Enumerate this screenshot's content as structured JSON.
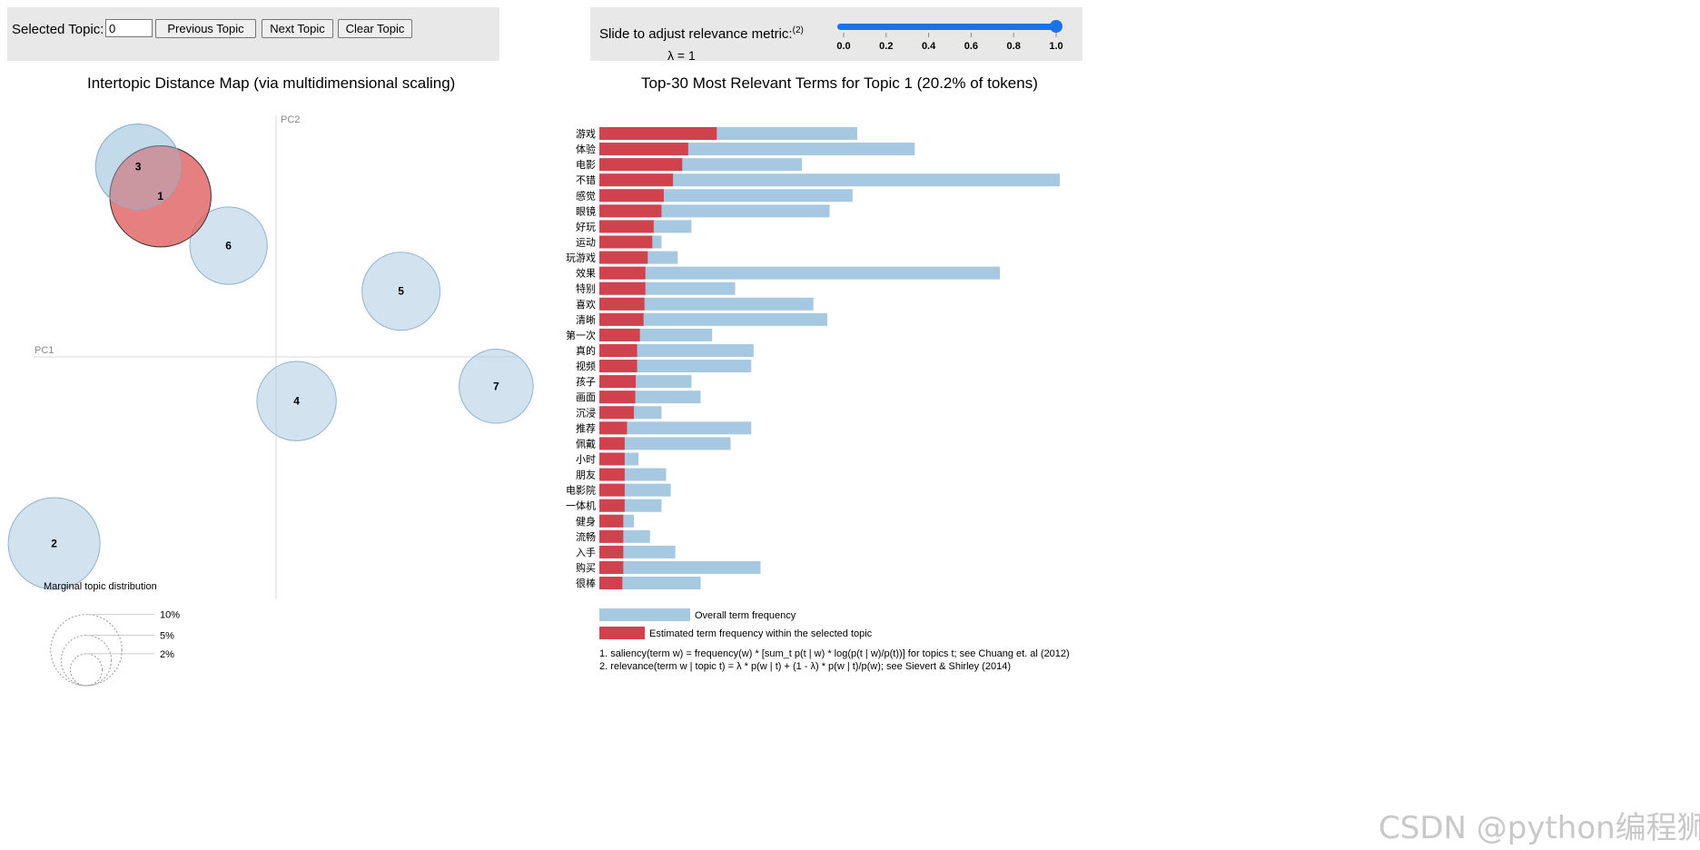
{
  "controls": {
    "selected_topic_label": "Selected Topic:",
    "selected_topic_value": "0",
    "previous_label": "Previous Topic",
    "next_label": "Next Topic",
    "clear_label": "Clear Topic",
    "slide_label": "Slide to adjust relevance metric:",
    "slide_footnote": "(2)",
    "lambda_text": "λ = 1",
    "lambda_value": 1.0,
    "slider_ticks": [
      "0.0",
      "0.2",
      "0.4",
      "0.6",
      "0.8",
      "1.0"
    ]
  },
  "map_title": "Intertopic Distance Map (via multidimensional scaling)",
  "bar_title": "Top-30 Most Relevant Terms for Topic 1 (20.2% of tokens)",
  "legend": {
    "overall": "Overall term frequency",
    "estimated": "Estimated term frequency within the selected topic"
  },
  "footnotes": [
    "1. saliency(term w) = frequency(w) * [sum_t p(t | w) * log(p(t | w)/p(t))] for topics t; see Chuang et. al (2012)",
    "2. relevance(term w | topic t) = λ * p(w | t) + (1 - λ) * p(w | t)/p(w); see Sievert & Shirley (2014)"
  ],
  "watermark": "CSDN @python编程狮",
  "colors": {
    "overall_bar": "#a6c8e0",
    "topic_bar": "#d0434e",
    "bubble": "#a6c8e0",
    "selected_bubble": "#e06060",
    "slider": "#1a73e8"
  },
  "chart_data": [
    {
      "type": "scatter",
      "title": "Intertopic Distance Map (via multidimensional scaling)",
      "xlabel": "PC1",
      "ylabel": "PC2",
      "xlim": [
        -0.26,
        0.26
      ],
      "ylim": [
        -0.26,
        0.26
      ],
      "selected_topic": 1,
      "marginal_label": "Marginal topic distribution",
      "marginal_ticks": [
        "2%",
        "5%",
        "10%"
      ],
      "points": [
        {
          "topic": "1",
          "x": -0.123,
          "y": 0.173,
          "size": 20.2
        },
        {
          "topic": "2",
          "x": -0.237,
          "y": -0.2,
          "size": 16.6
        },
        {
          "topic": "3",
          "x": -0.147,
          "y": 0.205,
          "size": 14.2
        },
        {
          "topic": "4",
          "x": 0.023,
          "y": -0.047,
          "size": 12.4
        },
        {
          "topic": "5",
          "x": 0.135,
          "y": 0.071,
          "size": 12.0
        },
        {
          "topic": "6",
          "x": -0.05,
          "y": 0.12,
          "size": 11.8
        },
        {
          "topic": "7",
          "x": 0.237,
          "y": -0.031,
          "size": 10.8
        }
      ]
    },
    {
      "type": "bar",
      "orientation": "horizontal",
      "title": "Top-30 Most Relevant Terms for Topic 1 (20.2% of tokens)",
      "xlim": [
        0,
        1000
      ],
      "categories": [
        "游戏",
        "体验",
        "电影",
        "不错",
        "感觉",
        "眼镜",
        "好玩",
        "运动",
        "玩游戏",
        "效果",
        "特别",
        "喜欢",
        "清晰",
        "第一次",
        "真的",
        "视频",
        "孩子",
        "画面",
        "沉浸",
        "推荐",
        "佩戴",
        "小时",
        "朋友",
        "电影院",
        "一体机",
        "健身",
        "流畅",
        "入手",
        "购买",
        "很棒"
      ],
      "series": [
        {
          "name": "Overall term frequency",
          "values": [
            560,
            685,
            440,
            1000,
            550,
            500,
            200,
            135,
            170,
            870,
            295,
            465,
            495,
            245,
            335,
            330,
            200,
            220,
            135,
            330,
            285,
            85,
            145,
            155,
            135,
            75,
            110,
            165,
            350,
            220
          ]
        },
        {
          "name": "Estimated term frequency within the selected topic",
          "values": [
            255,
            193,
            180,
            160,
            140,
            135,
            118,
            115,
            105,
            100,
            100,
            98,
            96,
            88,
            82,
            82,
            79,
            78,
            75,
            60,
            55,
            55,
            55,
            55,
            55,
            52,
            52,
            52,
            52,
            50
          ]
        }
      ]
    }
  ]
}
